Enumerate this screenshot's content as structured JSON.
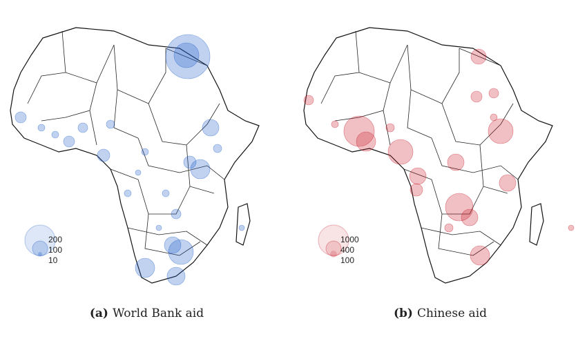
{
  "panels": [
    {
      "id": "a",
      "letter": "(a)",
      "caption": "World Bank aid",
      "color": "#1f5fc8",
      "legend": [
        "200",
        "100",
        "10"
      ]
    },
    {
      "id": "b",
      "letter": "(b)",
      "caption": "Chinese aid",
      "color": "#c81e2a",
      "legend": [
        "1000",
        "400",
        "100"
      ]
    }
  ]
}
